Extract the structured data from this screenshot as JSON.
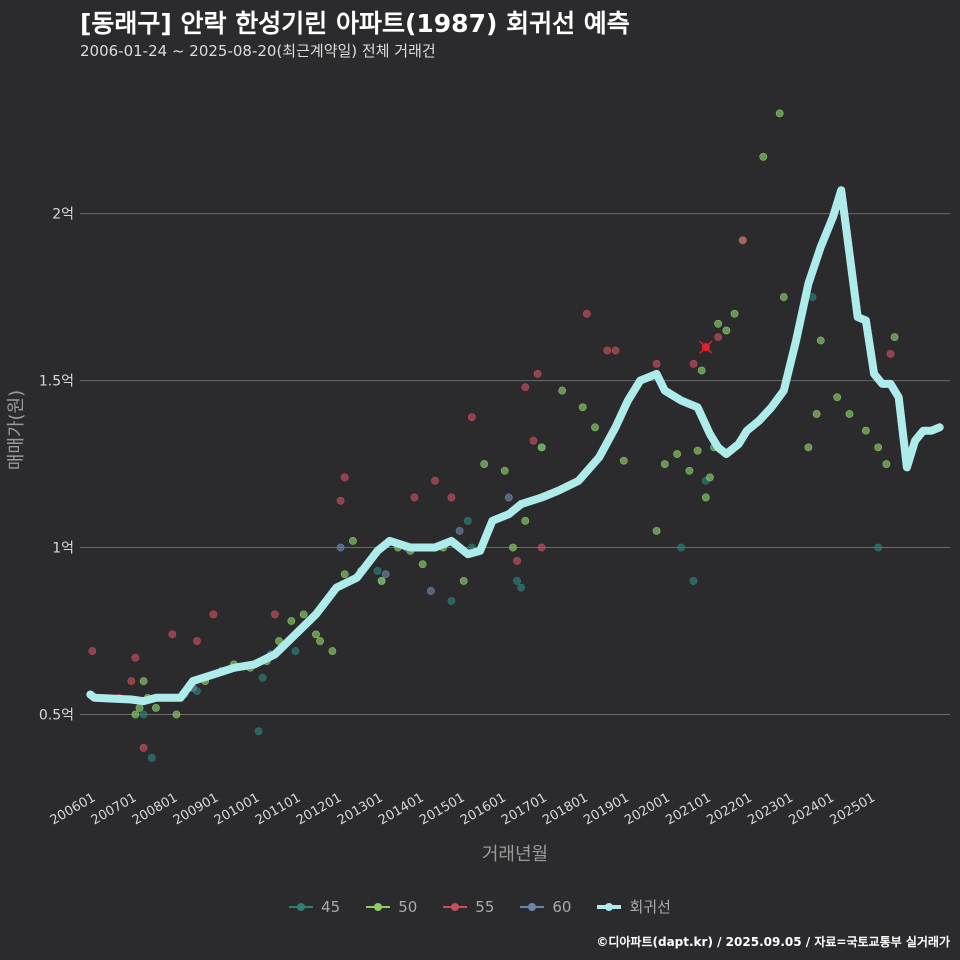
{
  "header": {
    "title": "[동래구] 안락 한성기린 아파트(1987) 회귀선 예측",
    "subtitle": "2006-01-24 ~ 2025-08-20(최근계약일) 전체 거래건"
  },
  "caption": "©디아파트(dapt.kr) / 2025.09.05 / 자료=국토교통부 실거래가",
  "colors": {
    "background": "#2b2b2d",
    "grid": "#6b6b6b",
    "regression": "#aeecec",
    "s45": "#2e7f7a",
    "s50": "#8ccc6a",
    "s55": "#c4505a",
    "s60": "#6b86a8",
    "highlight": "#e0202a"
  },
  "chart_data": {
    "type": "scatter",
    "title": "[동래구] 안락 한성기린 아파트(1987) 회귀선 예측",
    "xlabel": "거래년월",
    "ylabel": "매매가(원)",
    "xlim": [
      2005.75,
      2026.95
    ],
    "ylim": [
      0.28,
      2.4
    ],
    "x_ticks": [
      "200601",
      "200701",
      "200801",
      "200901",
      "201001",
      "201101",
      "201201",
      "201301",
      "201401",
      "201501",
      "201601",
      "201701",
      "201801",
      "201901",
      "202001",
      "202101",
      "202201",
      "202301",
      "202401",
      "202501"
    ],
    "y_ticks": [
      "0.5억",
      "1억",
      "1.5억",
      "2억"
    ],
    "y_tick_values": [
      0.5,
      1.0,
      1.5,
      2.0
    ],
    "legend": [
      "45",
      "50",
      "55",
      "60",
      "회귀선"
    ],
    "series": [
      {
        "name": "45",
        "points": [
          [
            2007.3,
            0.5
          ],
          [
            2007.5,
            0.37
          ],
          [
            2008.3,
            0.56
          ],
          [
            2008.6,
            0.57
          ],
          [
            2010.1,
            0.45
          ],
          [
            2010.2,
            0.61
          ],
          [
            2011.0,
            0.69
          ],
          [
            2013.0,
            0.93
          ],
          [
            2013.1,
            0.9
          ],
          [
            2014.8,
            0.84
          ],
          [
            2015.2,
            1.08
          ],
          [
            2015.3,
            1.0
          ],
          [
            2016.4,
            0.9
          ],
          [
            2016.5,
            0.88
          ],
          [
            2017.0,
            1.3
          ],
          [
            2020.4,
            1.0
          ],
          [
            2020.7,
            0.9
          ],
          [
            2021.0,
            1.2
          ],
          [
            2023.6,
            1.75
          ],
          [
            2025.2,
            1.0
          ]
        ]
      },
      {
        "name": "50",
        "points": [
          [
            2007.1,
            0.5
          ],
          [
            2007.2,
            0.52
          ],
          [
            2007.3,
            0.6
          ],
          [
            2007.4,
            0.55
          ],
          [
            2007.6,
            0.52
          ],
          [
            2007.9,
            0.55
          ],
          [
            2008.1,
            0.5
          ],
          [
            2008.4,
            0.58
          ],
          [
            2008.8,
            0.6
          ],
          [
            2009.2,
            0.63
          ],
          [
            2009.5,
            0.65
          ],
          [
            2009.9,
            0.64
          ],
          [
            2010.3,
            0.66
          ],
          [
            2010.6,
            0.72
          ],
          [
            2010.9,
            0.78
          ],
          [
            2011.2,
            0.8
          ],
          [
            2011.5,
            0.74
          ],
          [
            2011.6,
            0.72
          ],
          [
            2011.9,
            0.69
          ],
          [
            2012.2,
            0.92
          ],
          [
            2012.4,
            1.02
          ],
          [
            2012.6,
            0.93
          ],
          [
            2013.1,
            0.9
          ],
          [
            2013.5,
            1.0
          ],
          [
            2013.8,
            0.99
          ],
          [
            2014.1,
            0.95
          ],
          [
            2014.6,
            1.0
          ],
          [
            2015.1,
            0.9
          ],
          [
            2015.6,
            1.25
          ],
          [
            2016.1,
            1.23
          ],
          [
            2016.3,
            1.0
          ],
          [
            2016.6,
            1.08
          ],
          [
            2017.0,
            1.3
          ],
          [
            2017.5,
            1.47
          ],
          [
            2018.0,
            1.42
          ],
          [
            2018.3,
            1.36
          ],
          [
            2019.0,
            1.26
          ],
          [
            2019.8,
            1.05
          ],
          [
            2020.0,
            1.25
          ],
          [
            2020.3,
            1.28
          ],
          [
            2020.6,
            1.23
          ],
          [
            2020.8,
            1.29
          ],
          [
            2020.9,
            1.53
          ],
          [
            2021.0,
            1.15
          ],
          [
            2021.1,
            1.21
          ],
          [
            2021.2,
            1.3
          ],
          [
            2021.3,
            1.67
          ],
          [
            2021.5,
            1.65
          ],
          [
            2021.7,
            1.7
          ],
          [
            2021.9,
            1.92
          ],
          [
            2022.4,
            2.17
          ],
          [
            2022.8,
            2.3
          ],
          [
            2022.9,
            1.75
          ],
          [
            2023.5,
            1.3
          ],
          [
            2023.7,
            1.4
          ],
          [
            2023.8,
            1.62
          ],
          [
            2024.2,
            1.45
          ],
          [
            2024.5,
            1.4
          ],
          [
            2024.9,
            1.35
          ],
          [
            2025.2,
            1.3
          ],
          [
            2025.4,
            1.25
          ],
          [
            2025.6,
            1.63
          ]
        ]
      },
      {
        "name": "55",
        "points": [
          [
            2006.05,
            0.69
          ],
          [
            2006.7,
            0.55
          ],
          [
            2007.0,
            0.6
          ],
          [
            2007.1,
            0.67
          ],
          [
            2007.3,
            0.4
          ],
          [
            2008.0,
            0.74
          ],
          [
            2008.6,
            0.72
          ],
          [
            2009.0,
            0.8
          ],
          [
            2010.5,
            0.8
          ],
          [
            2012.1,
            1.14
          ],
          [
            2012.2,
            1.21
          ],
          [
            2013.9,
            1.15
          ],
          [
            2014.4,
            1.2
          ],
          [
            2014.8,
            1.15
          ],
          [
            2015.3,
            1.39
          ],
          [
            2016.4,
            0.96
          ],
          [
            2016.6,
            1.48
          ],
          [
            2016.8,
            1.32
          ],
          [
            2016.9,
            1.52
          ],
          [
            2017.0,
            1.0
          ],
          [
            2018.1,
            1.7
          ],
          [
            2018.6,
            1.59
          ],
          [
            2018.8,
            1.59
          ],
          [
            2019.8,
            1.55
          ],
          [
            2020.7,
            1.55
          ],
          [
            2021.0,
            1.6
          ],
          [
            2021.3,
            1.63
          ],
          [
            2021.9,
            1.92
          ],
          [
            2025.5,
            1.58
          ]
        ]
      },
      {
        "name": "60",
        "points": [
          [
            2008.5,
            0.58
          ],
          [
            2010.4,
            0.68
          ],
          [
            2012.1,
            1.0
          ],
          [
            2013.2,
            0.92
          ],
          [
            2013.7,
            1.0
          ],
          [
            2014.3,
            0.87
          ],
          [
            2015.0,
            1.05
          ],
          [
            2016.2,
            1.15
          ]
        ]
      },
      {
        "name": "회귀선",
        "points": [
          [
            2006.0,
            0.56
          ],
          [
            2006.1,
            0.55
          ],
          [
            2007.0,
            0.545
          ],
          [
            2007.3,
            0.54
          ],
          [
            2007.6,
            0.55
          ],
          [
            2008.2,
            0.55
          ],
          [
            2008.5,
            0.6
          ],
          [
            2009.0,
            0.62
          ],
          [
            2009.5,
            0.64
          ],
          [
            2010.0,
            0.65
          ],
          [
            2010.5,
            0.68
          ],
          [
            2011.0,
            0.74
          ],
          [
            2011.5,
            0.8
          ],
          [
            2012.0,
            0.88
          ],
          [
            2012.5,
            0.91
          ],
          [
            2013.0,
            0.99
          ],
          [
            2013.3,
            1.02
          ],
          [
            2013.8,
            1.0
          ],
          [
            2014.4,
            1.0
          ],
          [
            2014.8,
            1.02
          ],
          [
            2015.2,
            0.98
          ],
          [
            2015.5,
            0.99
          ],
          [
            2015.8,
            1.08
          ],
          [
            2016.2,
            1.1
          ],
          [
            2016.5,
            1.13
          ],
          [
            2017.0,
            1.15
          ],
          [
            2017.4,
            1.17
          ],
          [
            2017.9,
            1.2
          ],
          [
            2018.4,
            1.27
          ],
          [
            2018.8,
            1.36
          ],
          [
            2019.1,
            1.44
          ],
          [
            2019.4,
            1.5
          ],
          [
            2019.8,
            1.52
          ],
          [
            2020.0,
            1.47
          ],
          [
            2020.4,
            1.44
          ],
          [
            2020.8,
            1.42
          ],
          [
            2021.1,
            1.34
          ],
          [
            2021.3,
            1.3
          ],
          [
            2021.5,
            1.28
          ],
          [
            2021.8,
            1.31
          ],
          [
            2022.0,
            1.35
          ],
          [
            2022.3,
            1.38
          ],
          [
            2022.6,
            1.42
          ],
          [
            2022.9,
            1.47
          ],
          [
            2023.2,
            1.62
          ],
          [
            2023.5,
            1.79
          ],
          [
            2023.8,
            1.9
          ],
          [
            2024.1,
            1.99
          ],
          [
            2024.3,
            2.07
          ],
          [
            2024.5,
            1.88
          ],
          [
            2024.7,
            1.69
          ],
          [
            2024.9,
            1.68
          ],
          [
            2025.1,
            1.52
          ],
          [
            2025.3,
            1.49
          ],
          [
            2025.5,
            1.49
          ],
          [
            2025.7,
            1.45
          ],
          [
            2025.9,
            1.24
          ],
          [
            2026.1,
            1.32
          ],
          [
            2026.3,
            1.35
          ],
          [
            2026.5,
            1.35
          ],
          [
            2026.7,
            1.36
          ]
        ]
      }
    ],
    "highlight": {
      "label": "",
      "x": 2021.0,
      "y": 1.6
    }
  }
}
